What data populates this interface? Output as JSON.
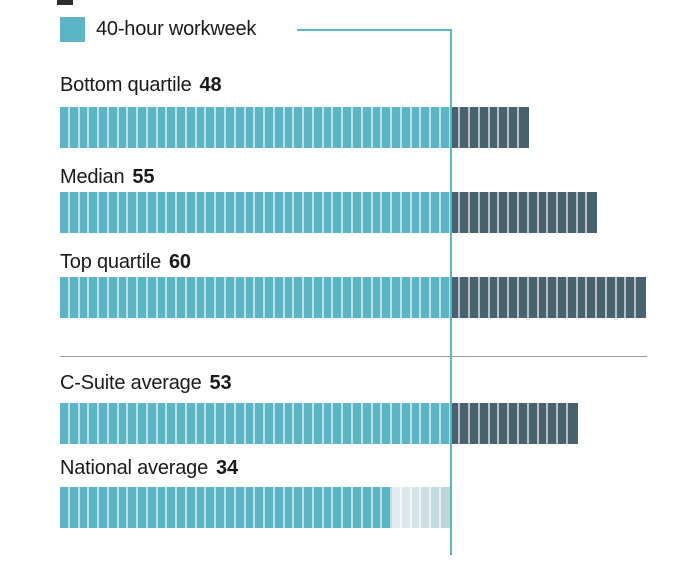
{
  "legend": {
    "label": "40-hour workweek"
  },
  "chart_data": {
    "type": "bar",
    "orientation": "horizontal",
    "threshold": 40,
    "axis_max": 60,
    "legend": [
      {
        "label": "40-hour workweek",
        "color": "#5cb5c4"
      }
    ],
    "groups": [
      {
        "rows": [
          {
            "label": "Bottom quartile",
            "value": 48
          },
          {
            "label": "Median",
            "value": 55
          },
          {
            "label": "Top quartile",
            "value": 60
          }
        ]
      },
      {
        "rows": [
          {
            "label": "C-Suite average",
            "value": 53
          },
          {
            "label": "National average",
            "value": 34
          }
        ]
      }
    ],
    "colors": {
      "within_threshold": "#5cb5c4",
      "above_threshold": "#49626f",
      "remainder_below_threshold": "#e2ecee",
      "remainder_below_threshold_edge": "#bcd7db",
      "threshold_line": "#56b7c8",
      "divider": "#999999",
      "text": "#1a1a1a"
    }
  }
}
